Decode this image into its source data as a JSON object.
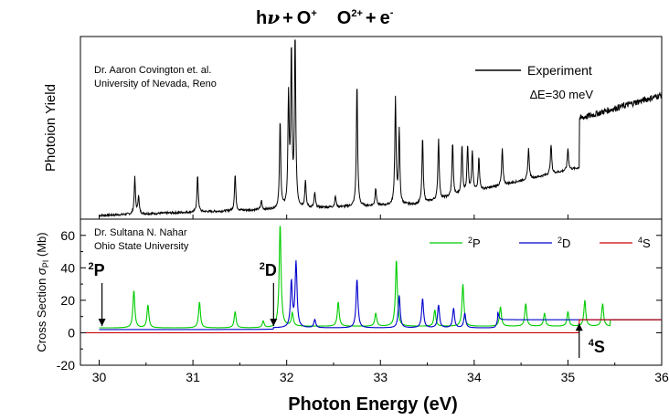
{
  "reaction": {
    "h": "h",
    "nu": "ν",
    "plus1": "+",
    "o_plus": "O",
    "o_plus_sup": "+",
    "o2_plus": "O",
    "o2_plus_sup": "2+",
    "plus2": "+",
    "e": "e",
    "e_sup": "-"
  },
  "colors": {
    "experiment": "#000000",
    "p2": "#00cc00",
    "d2": "#0000cc",
    "s4": "#cc0000"
  },
  "chart_data": [
    {
      "type": "line",
      "panel": "top",
      "ylabel": "Photoion Yield",
      "attribution": [
        "Dr. Aaron Covington et. al.",
        "University of Nevada, Reno"
      ],
      "legend": {
        "label": "Experiment",
        "position": "top-right"
      },
      "resolution": "∆E=30 meV",
      "xlim": [
        29.8,
        36.0
      ],
      "x_range_data": [
        30.0,
        36.0
      ],
      "baseline": 0.02,
      "threshold_step": {
        "energy": 35.12,
        "before": 0.25,
        "after": 0.55,
        "end": 0.68
      },
      "peaks": [
        {
          "x": 30.38,
          "h": 0.2
        },
        {
          "x": 30.42,
          "h": 0.1
        },
        {
          "x": 31.05,
          "h": 0.2
        },
        {
          "x": 31.45,
          "h": 0.2
        },
        {
          "x": 31.73,
          "h": 0.05
        },
        {
          "x": 31.93,
          "h": 0.48
        },
        {
          "x": 32.02,
          "h": 0.6
        },
        {
          "x": 32.05,
          "h": 0.85
        },
        {
          "x": 32.09,
          "h": 0.95
        },
        {
          "x": 32.2,
          "h": 0.15
        },
        {
          "x": 32.3,
          "h": 0.08
        },
        {
          "x": 32.52,
          "h": 0.06
        },
        {
          "x": 32.75,
          "h": 0.68
        },
        {
          "x": 32.95,
          "h": 0.1
        },
        {
          "x": 33.16,
          "h": 0.58
        },
        {
          "x": 33.2,
          "h": 0.4
        },
        {
          "x": 33.45,
          "h": 0.36
        },
        {
          "x": 33.62,
          "h": 0.33
        },
        {
          "x": 33.77,
          "h": 0.29
        },
        {
          "x": 33.87,
          "h": 0.27
        },
        {
          "x": 33.93,
          "h": 0.26
        },
        {
          "x": 33.98,
          "h": 0.22
        },
        {
          "x": 34.05,
          "h": 0.18
        },
        {
          "x": 34.3,
          "h": 0.2
        },
        {
          "x": 34.58,
          "h": 0.17
        },
        {
          "x": 34.82,
          "h": 0.16
        },
        {
          "x": 35.0,
          "h": 0.12
        }
      ]
    },
    {
      "type": "line",
      "panel": "bottom",
      "ylabel": "Cross Section σPI (Mb)",
      "ylabel_main": "Cross Section ",
      "ylabel_sigma": "σ",
      "ylabel_sub": "PI",
      "ylabel_unit": " (Mb)",
      "xlabel": "Photon Energy (eV)",
      "attribution": [
        "Dr. Sultana N. Nahar",
        "Ohio State University"
      ],
      "xlim": [
        29.8,
        36.0
      ],
      "ylim": [
        -20,
        70
      ],
      "xticks": [
        30,
        31,
        32,
        33,
        34,
        35,
        36
      ],
      "yticks": [
        -20,
        0,
        20,
        40,
        60
      ],
      "series": [
        {
          "name": "2P",
          "label_base": "P",
          "label_sup": "2",
          "x_start": 30.0,
          "baseline": 3,
          "peaks": [
            {
              "x": 30.37,
              "h": 23
            },
            {
              "x": 30.52,
              "h": 14
            },
            {
              "x": 31.07,
              "h": 16
            },
            {
              "x": 31.45,
              "h": 10
            },
            {
              "x": 31.75,
              "h": 4
            },
            {
              "x": 31.93,
              "h": 63
            },
            {
              "x": 32.06,
              "h": 8
            },
            {
              "x": 32.55,
              "h": 15
            },
            {
              "x": 32.95,
              "h": 8
            },
            {
              "x": 33.17,
              "h": 41
            },
            {
              "x": 33.58,
              "h": 10
            },
            {
              "x": 33.88,
              "h": 26
            },
            {
              "x": 34.28,
              "h": 12
            },
            {
              "x": 34.55,
              "h": 14
            },
            {
              "x": 34.75,
              "h": 8
            },
            {
              "x": 35.0,
              "h": 9
            },
            {
              "x": 35.18,
              "h": 16
            },
            {
              "x": 35.37,
              "h": 14
            }
          ]
        },
        {
          "name": "2D",
          "label_base": "D",
          "label_sup": "2",
          "x_start": 30.0,
          "baseline": 2,
          "peaks": [
            {
              "x": 32.05,
              "h": 28
            },
            {
              "x": 32.1,
              "h": 40
            },
            {
              "x": 32.3,
              "h": 5
            },
            {
              "x": 32.75,
              "h": 30
            },
            {
              "x": 33.2,
              "h": 20
            },
            {
              "x": 33.45,
              "h": 18
            },
            {
              "x": 33.62,
              "h": 14
            },
            {
              "x": 33.78,
              "h": 12
            },
            {
              "x": 33.9,
              "h": 9
            },
            {
              "x": 34.25,
              "h": 5
            }
          ],
          "step": {
            "energy": 34.25,
            "value": 8
          }
        },
        {
          "name": "4S",
          "label_base": "S",
          "label_sup": "4",
          "x_start": 29.85,
          "baseline": 0,
          "step": {
            "energy": 35.12,
            "value": 8
          }
        }
      ],
      "threshold_arrows": [
        {
          "base": "P",
          "sup": "2",
          "energy": 30.03,
          "direction": "down"
        },
        {
          "base": "D",
          "sup": "2",
          "energy": 31.86,
          "direction": "down"
        },
        {
          "base": "S",
          "sup": "4",
          "energy": 35.12,
          "direction": "up"
        }
      ]
    }
  ]
}
